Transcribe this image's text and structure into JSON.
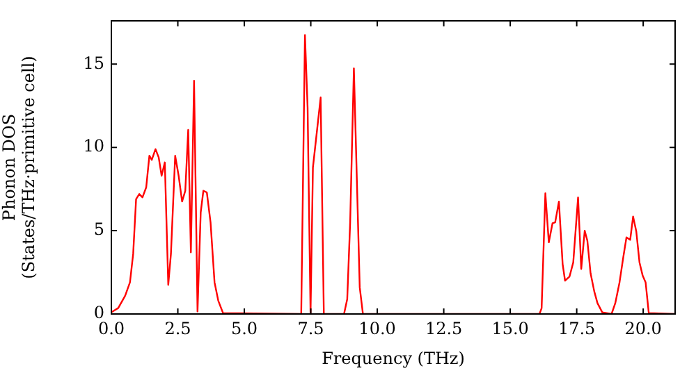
{
  "chart_data": {
    "type": "line",
    "xlabel": "Frequency (THz)",
    "ylabel": "Phonon DOS\n(States/THz·primitive cell)",
    "xlim": [
      0,
      21.2
    ],
    "ylim": [
      0,
      17.6
    ],
    "xticks": [
      {
        "value": 0,
        "label": "0.0"
      },
      {
        "value": 2.5,
        "label": "2.5"
      },
      {
        "value": 5,
        "label": "5.0"
      },
      {
        "value": 7.5,
        "label": "7.5"
      },
      {
        "value": 10,
        "label": "10.0"
      },
      {
        "value": 12.5,
        "label": "12.5"
      },
      {
        "value": 15,
        "label": "15.0"
      },
      {
        "value": 17.5,
        "label": "17.5"
      },
      {
        "value": 20,
        "label": "20.0"
      }
    ],
    "yticks": [
      0,
      5,
      10,
      15
    ],
    "grid": false,
    "legend": false,
    "marker": "none",
    "line_style": "solid",
    "series": [
      {
        "color": "#ff0000",
        "x": [
          0,
          0.26,
          0.52,
          0.7,
          0.82,
          0.93,
          1.05,
          1.17,
          1.31,
          1.43,
          1.52,
          1.66,
          1.78,
          1.89,
          2.01,
          2.14,
          2.24,
          2.4,
          2.53,
          2.66,
          2.78,
          2.89,
          2.99,
          3.11,
          3.24,
          3.36,
          3.46,
          3.59,
          3.73,
          3.88,
          4.02,
          4.2,
          7.14,
          7.28,
          7.38,
          7.49,
          7.58,
          7.87,
          7.99,
          8.75,
          8.87,
          8.98,
          9.12,
          9.34,
          9.46,
          16.1,
          16.18,
          16.32,
          16.45,
          16.59,
          16.69,
          16.83,
          16.97,
          17.06,
          17.23,
          17.37,
          17.55,
          17.67,
          17.8,
          17.9,
          18.02,
          18.16,
          18.28,
          18.46,
          18.81,
          18.95,
          19.11,
          19.25,
          19.37,
          19.51,
          19.62,
          19.74,
          19.86,
          19.98,
          20.09,
          20.21,
          21.2
        ],
        "values": [
          0.1,
          0.36,
          1.1,
          1.9,
          3.6,
          6.9,
          7.2,
          7,
          7.6,
          9.5,
          9.25,
          9.9,
          9.4,
          8.3,
          9.1,
          1.75,
          3.6,
          9.5,
          8.3,
          6.75,
          7.4,
          11.05,
          3.7,
          14,
          0.15,
          6.1,
          7.4,
          7.3,
          5.5,
          1.9,
          0.8,
          0.05,
          0,
          16.75,
          12.4,
          0,
          8.8,
          13,
          0,
          0,
          0.9,
          5.5,
          14.75,
          1.6,
          0,
          0,
          0.35,
          7.25,
          4.3,
          5.45,
          5.5,
          6.75,
          3,
          2,
          2.25,
          3.1,
          7,
          2.7,
          5,
          4.4,
          2.45,
          1.35,
          0.65,
          0.1,
          0,
          0.65,
          1.9,
          3.4,
          4.6,
          4.45,
          5.85,
          4.95,
          3.1,
          2.3,
          1.9,
          0.05,
          0
        ]
      }
    ]
  }
}
